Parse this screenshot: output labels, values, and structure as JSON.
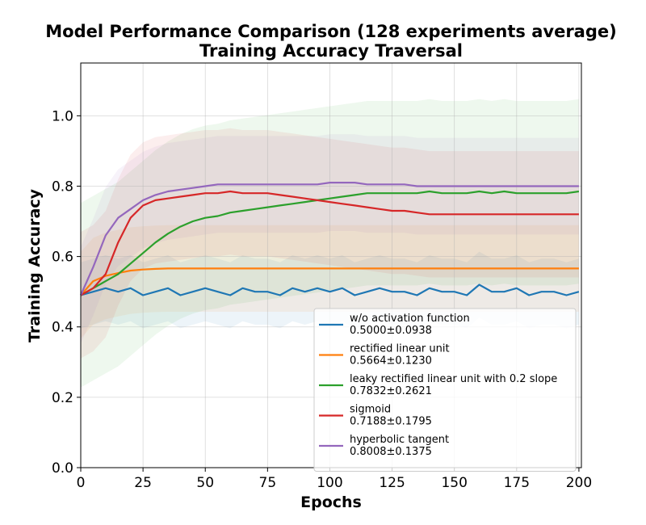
{
  "chart_data": {
    "type": "line",
    "title": "Model Performance Comparison (128 experiments average)",
    "subtitle": "Training Accuracy Traversal",
    "xlabel": "Epochs",
    "ylabel": "Training Accuracy",
    "xlim": [
      0,
      201
    ],
    "ylim": [
      0,
      1.15
    ],
    "xticks": [
      "0",
      "25",
      "50",
      "75",
      "100",
      "125",
      "150",
      "175",
      "200"
    ],
    "yticks": [
      "0.0",
      "0.2",
      "0.4",
      "0.6",
      "0.8",
      "1.0"
    ],
    "grid": true,
    "legend_position": "lower-right",
    "series": [
      {
        "name": "w/o activation function",
        "stat": "0.5000±0.0938",
        "color": "#1f77b4",
        "std": 0.0938,
        "x": [
          0,
          5,
          10,
          15,
          20,
          25,
          30,
          35,
          40,
          45,
          50,
          55,
          60,
          65,
          70,
          75,
          80,
          85,
          90,
          95,
          100,
          105,
          110,
          115,
          120,
          125,
          130,
          135,
          140,
          145,
          150,
          155,
          160,
          165,
          170,
          175,
          180,
          185,
          190,
          195,
          200
        ],
        "y": [
          0.49,
          0.5,
          0.51,
          0.5,
          0.51,
          0.49,
          0.5,
          0.51,
          0.49,
          0.5,
          0.51,
          0.5,
          0.49,
          0.51,
          0.5,
          0.5,
          0.49,
          0.51,
          0.5,
          0.51,
          0.5,
          0.51,
          0.49,
          0.5,
          0.51,
          0.5,
          0.5,
          0.49,
          0.51,
          0.5,
          0.5,
          0.49,
          0.52,
          0.5,
          0.5,
          0.51,
          0.49,
          0.5,
          0.5,
          0.49,
          0.5
        ]
      },
      {
        "name": "rectified linear unit",
        "stat": "0.5664±0.1230",
        "color": "#ff7f0e",
        "std": 0.123,
        "x": [
          0,
          5,
          10,
          15,
          20,
          25,
          30,
          35,
          40,
          50,
          60,
          80,
          100,
          125,
          150,
          175,
          200
        ],
        "y": [
          0.49,
          0.53,
          0.545,
          0.553,
          0.56,
          0.563,
          0.565,
          0.566,
          0.566,
          0.566,
          0.566,
          0.566,
          0.566,
          0.566,
          0.566,
          0.566,
          0.566
        ]
      },
      {
        "name": "leaky rectified linear unit with 0.2 slope",
        "stat": "0.7832±0.2621",
        "color": "#2ca02c",
        "std": 0.2621,
        "x": [
          0,
          5,
          10,
          15,
          20,
          25,
          30,
          35,
          40,
          45,
          50,
          55,
          60,
          65,
          70,
          75,
          80,
          85,
          90,
          95,
          100,
          105,
          110,
          115,
          120,
          125,
          130,
          135,
          140,
          145,
          150,
          155,
          160,
          165,
          170,
          175,
          180,
          185,
          190,
          195,
          200
        ],
        "y": [
          0.49,
          0.51,
          0.53,
          0.55,
          0.58,
          0.61,
          0.64,
          0.665,
          0.685,
          0.7,
          0.71,
          0.715,
          0.725,
          0.73,
          0.735,
          0.74,
          0.745,
          0.75,
          0.755,
          0.76,
          0.765,
          0.77,
          0.775,
          0.78,
          0.78,
          0.78,
          0.78,
          0.78,
          0.785,
          0.78,
          0.78,
          0.78,
          0.785,
          0.78,
          0.785,
          0.78,
          0.78,
          0.78,
          0.78,
          0.78,
          0.785
        ]
      },
      {
        "name": "sigmoid",
        "stat": "0.7188±0.1795",
        "color": "#d62728",
        "std": 0.1795,
        "x": [
          0,
          5,
          10,
          15,
          20,
          25,
          30,
          35,
          40,
          45,
          50,
          55,
          60,
          65,
          70,
          75,
          80,
          85,
          90,
          95,
          100,
          105,
          110,
          115,
          120,
          125,
          130,
          135,
          140,
          145,
          150,
          155,
          160,
          165,
          170,
          175,
          180,
          185,
          190,
          195,
          200
        ],
        "y": [
          0.49,
          0.51,
          0.55,
          0.64,
          0.71,
          0.745,
          0.76,
          0.765,
          0.77,
          0.775,
          0.78,
          0.78,
          0.785,
          0.78,
          0.78,
          0.78,
          0.775,
          0.77,
          0.765,
          0.76,
          0.755,
          0.75,
          0.745,
          0.74,
          0.735,
          0.73,
          0.73,
          0.725,
          0.72,
          0.72,
          0.72,
          0.72,
          0.72,
          0.72,
          0.72,
          0.72,
          0.72,
          0.72,
          0.72,
          0.72,
          0.72
        ]
      },
      {
        "name": "hyperbolic tangent",
        "stat": "0.8008±0.1375",
        "color": "#9467bd",
        "std": 0.1375,
        "x": [
          0,
          5,
          10,
          15,
          20,
          25,
          30,
          35,
          40,
          45,
          50,
          55,
          60,
          65,
          70,
          75,
          80,
          85,
          90,
          95,
          100,
          105,
          110,
          115,
          120,
          125,
          130,
          135,
          140,
          145,
          150,
          155,
          160,
          165,
          170,
          175,
          180,
          185,
          190,
          195,
          200
        ],
        "y": [
          0.49,
          0.57,
          0.66,
          0.71,
          0.735,
          0.76,
          0.775,
          0.785,
          0.79,
          0.795,
          0.8,
          0.805,
          0.805,
          0.805,
          0.805,
          0.805,
          0.805,
          0.805,
          0.805,
          0.805,
          0.81,
          0.81,
          0.81,
          0.805,
          0.805,
          0.805,
          0.805,
          0.8,
          0.8,
          0.8,
          0.8,
          0.8,
          0.8,
          0.8,
          0.8,
          0.8,
          0.8,
          0.8,
          0.8,
          0.8,
          0.8
        ]
      }
    ]
  }
}
